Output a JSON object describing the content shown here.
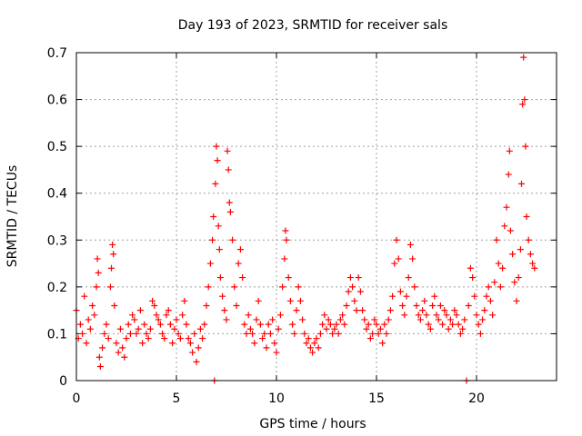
{
  "chart_data": {
    "type": "scatter",
    "title": "Day 193 of 2023, SRMTID for receiver sals",
    "xlabel": "GPS time / hours",
    "ylabel": "SRMTID / TECUs",
    "xlim": [
      0,
      24
    ],
    "ylim": [
      0,
      0.7
    ],
    "x_ticks": [
      0,
      5,
      10,
      15,
      20
    ],
    "x_tick_labels": [
      "0",
      "5",
      "10",
      "15",
      "20"
    ],
    "y_ticks": [
      0,
      0.1,
      0.2,
      0.3,
      0.4,
      0.5,
      0.6,
      0.7
    ],
    "y_tick_labels": [
      "0",
      "0.1",
      "0.2",
      "0.3",
      "0.4",
      "0.5",
      "0.6",
      "0.7"
    ],
    "grid": true,
    "marker": "plus",
    "color": "#ff0000",
    "series": [
      {
        "name": "SRMTID",
        "points": [
          [
            0.0,
            0.15
          ],
          [
            0.1,
            0.09
          ],
          [
            0.2,
            0.12
          ],
          [
            0.3,
            0.1
          ],
          [
            0.4,
            0.18
          ],
          [
            0.5,
            0.08
          ],
          [
            0.6,
            0.13
          ],
          [
            0.7,
            0.11
          ],
          [
            0.8,
            0.16
          ],
          [
            0.9,
            0.14
          ],
          [
            1.0,
            0.2
          ],
          [
            1.05,
            0.26
          ],
          [
            1.1,
            0.23
          ],
          [
            1.15,
            0.05
          ],
          [
            1.2,
            0.03
          ],
          [
            1.3,
            0.07
          ],
          [
            1.4,
            0.1
          ],
          [
            1.5,
            0.12
          ],
          [
            1.6,
            0.09
          ],
          [
            1.7,
            0.2
          ],
          [
            1.75,
            0.24
          ],
          [
            1.8,
            0.29
          ],
          [
            1.85,
            0.27
          ],
          [
            1.9,
            0.16
          ],
          [
            2.0,
            0.08
          ],
          [
            2.1,
            0.06
          ],
          [
            2.2,
            0.11
          ],
          [
            2.3,
            0.07
          ],
          [
            2.4,
            0.05
          ],
          [
            2.5,
            0.09
          ],
          [
            2.6,
            0.12
          ],
          [
            2.7,
            0.1
          ],
          [
            2.8,
            0.14
          ],
          [
            2.9,
            0.13
          ],
          [
            3.0,
            0.1
          ],
          [
            3.1,
            0.11
          ],
          [
            3.2,
            0.15
          ],
          [
            3.3,
            0.08
          ],
          [
            3.4,
            0.12
          ],
          [
            3.5,
            0.1
          ],
          [
            3.6,
            0.09
          ],
          [
            3.7,
            0.11
          ],
          [
            3.8,
            0.17
          ],
          [
            3.9,
            0.16
          ],
          [
            4.0,
            0.14
          ],
          [
            4.1,
            0.13
          ],
          [
            4.2,
            0.12
          ],
          [
            4.3,
            0.1
          ],
          [
            4.4,
            0.09
          ],
          [
            4.5,
            0.14
          ],
          [
            4.6,
            0.15
          ],
          [
            4.7,
            0.12
          ],
          [
            4.8,
            0.08
          ],
          [
            4.9,
            0.11
          ],
          [
            5.0,
            0.13
          ],
          [
            5.1,
            0.1
          ],
          [
            5.2,
            0.09
          ],
          [
            5.3,
            0.14
          ],
          [
            5.4,
            0.17
          ],
          [
            5.5,
            0.12
          ],
          [
            5.6,
            0.09
          ],
          [
            5.7,
            0.08
          ],
          [
            5.8,
            0.06
          ],
          [
            5.9,
            0.1
          ],
          [
            6.0,
            0.04
          ],
          [
            6.1,
            0.07
          ],
          [
            6.2,
            0.11
          ],
          [
            6.3,
            0.09
          ],
          [
            6.4,
            0.12
          ],
          [
            6.5,
            0.16
          ],
          [
            6.6,
            0.2
          ],
          [
            6.7,
            0.25
          ],
          [
            6.8,
            0.3
          ],
          [
            6.85,
            0.35
          ],
          [
            6.9,
            0.0
          ],
          [
            6.95,
            0.42
          ],
          [
            7.0,
            0.5
          ],
          [
            7.05,
            0.47
          ],
          [
            7.1,
            0.33
          ],
          [
            7.15,
            0.28
          ],
          [
            7.2,
            0.22
          ],
          [
            7.3,
            0.18
          ],
          [
            7.4,
            0.15
          ],
          [
            7.5,
            0.13
          ],
          [
            7.55,
            0.49
          ],
          [
            7.6,
            0.45
          ],
          [
            7.65,
            0.38
          ],
          [
            7.7,
            0.36
          ],
          [
            7.8,
            0.3
          ],
          [
            7.9,
            0.2
          ],
          [
            8.0,
            0.16
          ],
          [
            8.1,
            0.25
          ],
          [
            8.2,
            0.28
          ],
          [
            8.3,
            0.22
          ],
          [
            8.4,
            0.12
          ],
          [
            8.5,
            0.1
          ],
          [
            8.6,
            0.14
          ],
          [
            8.7,
            0.11
          ],
          [
            8.8,
            0.1
          ],
          [
            8.9,
            0.08
          ],
          [
            9.0,
            0.13
          ],
          [
            9.1,
            0.17
          ],
          [
            9.2,
            0.12
          ],
          [
            9.3,
            0.09
          ],
          [
            9.4,
            0.1
          ],
          [
            9.5,
            0.07
          ],
          [
            9.6,
            0.12
          ],
          [
            9.7,
            0.1
          ],
          [
            9.8,
            0.13
          ],
          [
            9.9,
            0.08
          ],
          [
            10.0,
            0.06
          ],
          [
            10.1,
            0.11
          ],
          [
            10.2,
            0.14
          ],
          [
            10.3,
            0.2
          ],
          [
            10.4,
            0.26
          ],
          [
            10.45,
            0.32
          ],
          [
            10.5,
            0.3
          ],
          [
            10.6,
            0.22
          ],
          [
            10.7,
            0.17
          ],
          [
            10.8,
            0.12
          ],
          [
            10.9,
            0.1
          ],
          [
            11.0,
            0.15
          ],
          [
            11.1,
            0.2
          ],
          [
            11.2,
            0.17
          ],
          [
            11.3,
            0.13
          ],
          [
            11.4,
            0.1
          ],
          [
            11.5,
            0.08
          ],
          [
            11.6,
            0.09
          ],
          [
            11.7,
            0.07
          ],
          [
            11.8,
            0.06
          ],
          [
            11.9,
            0.08
          ],
          [
            12.0,
            0.09
          ],
          [
            12.1,
            0.07
          ],
          [
            12.2,
            0.1
          ],
          [
            12.3,
            0.12
          ],
          [
            12.4,
            0.14
          ],
          [
            12.5,
            0.11
          ],
          [
            12.6,
            0.13
          ],
          [
            12.7,
            0.12
          ],
          [
            12.8,
            0.1
          ],
          [
            12.9,
            0.11
          ],
          [
            13.0,
            0.12
          ],
          [
            13.1,
            0.1
          ],
          [
            13.2,
            0.13
          ],
          [
            13.3,
            0.14
          ],
          [
            13.4,
            0.12
          ],
          [
            13.5,
            0.16
          ],
          [
            13.6,
            0.19
          ],
          [
            13.7,
            0.22
          ],
          [
            13.8,
            0.2
          ],
          [
            13.9,
            0.17
          ],
          [
            14.0,
            0.15
          ],
          [
            14.1,
            0.22
          ],
          [
            14.2,
            0.19
          ],
          [
            14.3,
            0.15
          ],
          [
            14.4,
            0.13
          ],
          [
            14.5,
            0.11
          ],
          [
            14.6,
            0.12
          ],
          [
            14.7,
            0.09
          ],
          [
            14.8,
            0.1
          ],
          [
            14.9,
            0.13
          ],
          [
            15.0,
            0.12
          ],
          [
            15.1,
            0.1
          ],
          [
            15.2,
            0.11
          ],
          [
            15.3,
            0.08
          ],
          [
            15.4,
            0.12
          ],
          [
            15.5,
            0.1
          ],
          [
            15.6,
            0.13
          ],
          [
            15.7,
            0.15
          ],
          [
            15.8,
            0.18
          ],
          [
            15.9,
            0.25
          ],
          [
            16.0,
            0.3
          ],
          [
            16.1,
            0.26
          ],
          [
            16.2,
            0.19
          ],
          [
            16.3,
            0.16
          ],
          [
            16.4,
            0.14
          ],
          [
            16.5,
            0.18
          ],
          [
            16.6,
            0.22
          ],
          [
            16.7,
            0.29
          ],
          [
            16.8,
            0.26
          ],
          [
            16.9,
            0.2
          ],
          [
            17.0,
            0.16
          ],
          [
            17.1,
            0.14
          ],
          [
            17.2,
            0.13
          ],
          [
            17.3,
            0.15
          ],
          [
            17.4,
            0.17
          ],
          [
            17.5,
            0.14
          ],
          [
            17.6,
            0.12
          ],
          [
            17.7,
            0.11
          ],
          [
            17.8,
            0.16
          ],
          [
            17.9,
            0.18
          ],
          [
            18.0,
            0.14
          ],
          [
            18.1,
            0.13
          ],
          [
            18.2,
            0.16
          ],
          [
            18.3,
            0.12
          ],
          [
            18.4,
            0.15
          ],
          [
            18.5,
            0.14
          ],
          [
            18.6,
            0.11
          ],
          [
            18.7,
            0.13
          ],
          [
            18.8,
            0.12
          ],
          [
            18.9,
            0.15
          ],
          [
            19.0,
            0.14
          ],
          [
            19.1,
            0.12
          ],
          [
            19.2,
            0.1
          ],
          [
            19.3,
            0.11
          ],
          [
            19.4,
            0.13
          ],
          [
            19.5,
            0.0
          ],
          [
            19.6,
            0.16
          ],
          [
            19.7,
            0.24
          ],
          [
            19.8,
            0.22
          ],
          [
            19.9,
            0.18
          ],
          [
            20.0,
            0.14
          ],
          [
            20.1,
            0.12
          ],
          [
            20.2,
            0.1
          ],
          [
            20.3,
            0.13
          ],
          [
            20.4,
            0.15
          ],
          [
            20.5,
            0.18
          ],
          [
            20.6,
            0.2
          ],
          [
            20.7,
            0.17
          ],
          [
            20.8,
            0.14
          ],
          [
            20.9,
            0.21
          ],
          [
            21.0,
            0.3
          ],
          [
            21.1,
            0.25
          ],
          [
            21.2,
            0.2
          ],
          [
            21.3,
            0.24
          ],
          [
            21.4,
            0.33
          ],
          [
            21.5,
            0.37
          ],
          [
            21.6,
            0.44
          ],
          [
            21.65,
            0.49
          ],
          [
            21.7,
            0.32
          ],
          [
            21.8,
            0.27
          ],
          [
            21.9,
            0.21
          ],
          [
            22.0,
            0.17
          ],
          [
            22.1,
            0.22
          ],
          [
            22.2,
            0.28
          ],
          [
            22.25,
            0.42
          ],
          [
            22.3,
            0.59
          ],
          [
            22.35,
            0.69
          ],
          [
            22.4,
            0.6
          ],
          [
            22.45,
            0.5
          ],
          [
            22.5,
            0.35
          ],
          [
            22.6,
            0.3
          ],
          [
            22.7,
            0.27
          ],
          [
            22.8,
            0.25
          ],
          [
            22.9,
            0.24
          ]
        ]
      }
    ]
  }
}
